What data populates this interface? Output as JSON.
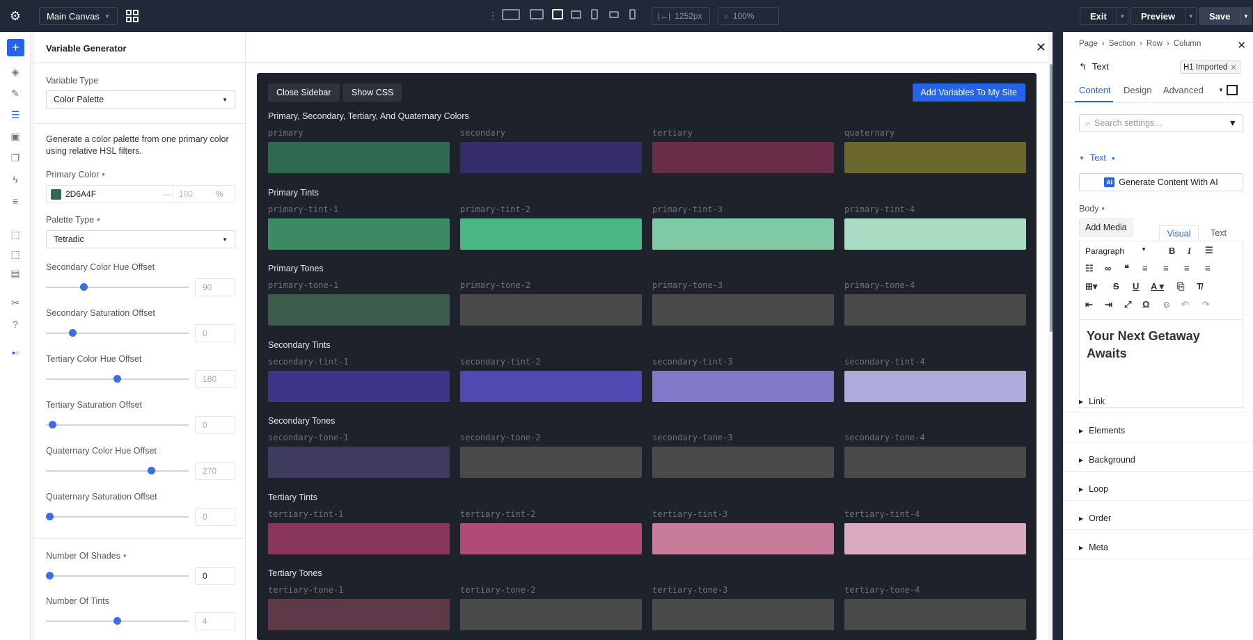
{
  "topbar": {
    "canvas": "Main Canvas",
    "width_value": "1252px",
    "zoom_value": "100%",
    "exit_label": "Exit",
    "preview_label": "Preview",
    "save_label": "Save"
  },
  "modal": {
    "title": "Variable Generator",
    "variable_type_label": "Variable Type",
    "variable_type_value": "Color Palette",
    "description": "Generate a color palette from one primary color using relative HSL filters.",
    "primary_color_label": "Primary Color",
    "primary_color_hex": "2D6A4F",
    "primary_color_swatch": "#2d6a4f",
    "opacity_dash": "—",
    "opacity_value": "100",
    "opacity_unit": "%",
    "palette_type_label": "Palette Type",
    "palette_type_value": "Tetradic",
    "sliders": [
      {
        "label": "Secondary Color Hue Offset",
        "value": "90",
        "fraction": 0.25
      },
      {
        "label": "Secondary Saturation Offset",
        "value": "0",
        "fraction": 0.17
      },
      {
        "label": "Tertiary Color Hue Offset",
        "value": "180",
        "fraction": 0.5
      },
      {
        "label": "Tertiary Saturation Offset",
        "value": "0",
        "fraction": 0.02
      },
      {
        "label": "Quaternary Color Hue Offset",
        "value": "270",
        "fraction": 0.75
      },
      {
        "label": "Quaternary Saturation Offset",
        "value": "0",
        "fraction": 0.0
      }
    ],
    "shades_label": "Number Of Shades",
    "shades_value": "0",
    "tints_label": "Number Of Tints",
    "tints_value": "4"
  },
  "preview": {
    "close_sidebar": "Close Sidebar",
    "show_css": "Show CSS",
    "add_variables": "Add Variables To My Site",
    "sections": [
      {
        "title": "Primary, Secondary, Tertiary, And Quaternary Colors",
        "items": [
          [
            "primary",
            "#2d6a4f"
          ],
          [
            "secondary",
            "#352d6a"
          ],
          [
            "tertiary",
            "#6a2d48"
          ],
          [
            "quaternary",
            "#6a682d"
          ]
        ]
      },
      {
        "title": "Primary Tints",
        "items": [
          [
            "primary-tint-1",
            "#3b8a64"
          ],
          [
            "primary-tint-2",
            "#4cb683"
          ],
          [
            "primary-tint-3",
            "#7fc9a6"
          ],
          [
            "primary-tint-4",
            "#a9dcc3"
          ]
        ]
      },
      {
        "title": "Primary Tones",
        "items": [
          [
            "primary-tone-1",
            "#3b5e4c"
          ],
          [
            "primary-tone-2",
            "#4a4a4a"
          ],
          [
            "primary-tone-3",
            "#4a4a4a"
          ],
          [
            "primary-tone-4",
            "#4a4a4a"
          ]
        ]
      },
      {
        "title": "Secondary Tints",
        "items": [
          [
            "secondary-tint-1",
            "#3d3587"
          ],
          [
            "secondary-tint-2",
            "#5049b1"
          ],
          [
            "secondary-tint-3",
            "#8079c8"
          ],
          [
            "secondary-tint-4",
            "#aeaadc"
          ]
        ]
      },
      {
        "title": "Secondary Tones",
        "items": [
          [
            "secondary-tone-1",
            "#3d3a5e"
          ],
          [
            "secondary-tone-2",
            "#4a4a4a"
          ],
          [
            "secondary-tone-3",
            "#4a4a4a"
          ],
          [
            "secondary-tone-4",
            "#4a4a4a"
          ]
        ]
      },
      {
        "title": "Tertiary Tints",
        "items": [
          [
            "tertiary-tint-1",
            "#873558"
          ],
          [
            "tertiary-tint-2",
            "#b04a76"
          ],
          [
            "tertiary-tint-3",
            "#c97b9c"
          ],
          [
            "tertiary-tint-4",
            "#dcaabe"
          ]
        ]
      },
      {
        "title": "Tertiary Tones",
        "items": [
          [
            "tertiary-tone-1",
            "#5e3a48"
          ],
          [
            "tertiary-tone-2",
            "#4a4a4a"
          ],
          [
            "tertiary-tone-3",
            "#4a4a4a"
          ],
          [
            "tertiary-tone-4",
            "#4a4a4a"
          ]
        ]
      }
    ]
  },
  "rightpanel": {
    "crumbs": [
      "Page",
      "Section",
      "Row",
      "Column"
    ],
    "element": "Text",
    "preset": "H1 Imported",
    "tabs": [
      "Content",
      "Design",
      "Advanced"
    ],
    "search_placeholder": "Search settings...",
    "text_group": "Text",
    "ai_button": "Generate Content With AI",
    "body_label": "Body",
    "add_media": "Add Media",
    "visual_tab": "Visual",
    "text_tab": "Text",
    "paragraph": "Paragraph",
    "heading_text": "Your Next Getaway Awaits",
    "accordions": [
      "Link",
      "Elements",
      "Background",
      "Loop",
      "Order",
      "Meta"
    ]
  }
}
